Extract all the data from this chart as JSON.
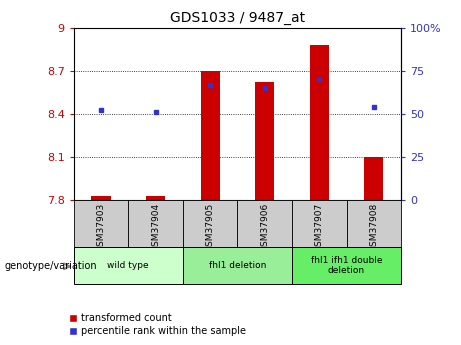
{
  "title": "GDS1033 / 9487_at",
  "samples": [
    "GSM37903",
    "GSM37904",
    "GSM37905",
    "GSM37906",
    "GSM37907",
    "GSM37908"
  ],
  "transformed_count": [
    7.83,
    7.83,
    8.7,
    8.62,
    8.88,
    8.1
  ],
  "percentile_rank": [
    52,
    51,
    67,
    65,
    70,
    54
  ],
  "ylim_left": [
    7.8,
    9.0
  ],
  "ylim_right": [
    0,
    100
  ],
  "yticks_left": [
    7.8,
    8.1,
    8.4,
    8.7,
    9.0
  ],
  "yticks_right": [
    0,
    25,
    50,
    75,
    100
  ],
  "ytick_labels_left": [
    "7.8",
    "8.1",
    "8.4",
    "8.7",
    "9"
  ],
  "ytick_labels_right": [
    "0",
    "25",
    "50",
    "75",
    "100%"
  ],
  "bar_color": "#cc0000",
  "dot_color": "#3333cc",
  "bar_bottom": 7.8,
  "group_positions": [
    [
      0,
      1,
      "wild type",
      "#ccffcc"
    ],
    [
      2,
      3,
      "fhl1 deletion",
      "#99ee99"
    ],
    [
      4,
      5,
      "fhl1 ifh1 double\ndeletion",
      "#66ee66"
    ]
  ],
  "sample_bg_color": "#cccccc",
  "genotype_label": "genotype/variation",
  "legend_bar_label": "transformed count",
  "legend_dot_label": "percentile rank within the sample",
  "background_color": "#ffffff",
  "tick_label_color_left": "#cc0000",
  "tick_label_color_right": "#3333cc",
  "bar_width": 0.35,
  "grid_yticks": [
    8.1,
    8.4,
    8.7
  ]
}
